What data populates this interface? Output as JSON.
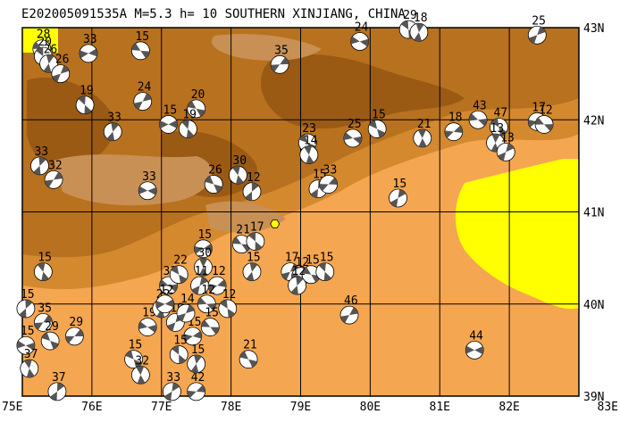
{
  "title": "E202005091535A M=5.3 h= 10 SOUTHERN XINJIANG, CHINA",
  "map": {
    "lon_range": [
      75,
      83
    ],
    "lat_range": [
      39,
      43
    ],
    "lon_ticks": [
      "75E",
      "76E",
      "77E",
      "78E",
      "79E",
      "80E",
      "81E",
      "82E",
      "83E"
    ],
    "lat_ticks": [
      "43N",
      "42N",
      "41N",
      "40N",
      "39N"
    ],
    "colors": {
      "plain": "#F5A650",
      "foothill": "#D4892F",
      "mountain": "#B8711E",
      "high_mountain": "#9A5A14",
      "mountain_light": "#C99055",
      "ridge_light": "#E0B080",
      "highlight": "#FFFF00",
      "grid": "#000000"
    },
    "epicenter": {
      "lon": 78.63,
      "lat": 40.87,
      "color": "#FFFF00"
    },
    "mechanisms": [
      {
        "lon": 75.28,
        "lat": 42.77,
        "label": "28"
      },
      {
        "lon": 75.3,
        "lat": 42.69,
        "label": "20"
      },
      {
        "lon": 75.38,
        "lat": 42.61,
        "label": "26"
      },
      {
        "lon": 75.55,
        "lat": 42.5,
        "label": "26"
      },
      {
        "lon": 75.95,
        "lat": 42.72,
        "label": "33"
      },
      {
        "lon": 76.7,
        "lat": 42.75,
        "label": "15"
      },
      {
        "lon": 75.9,
        "lat": 42.16,
        "label": "19"
      },
      {
        "lon": 76.3,
        "lat": 41.87,
        "label": "33"
      },
      {
        "lon": 76.73,
        "lat": 42.2,
        "label": "24"
      },
      {
        "lon": 77.1,
        "lat": 41.95,
        "label": "15"
      },
      {
        "lon": 77.5,
        "lat": 42.12,
        "label": "20"
      },
      {
        "lon": 77.38,
        "lat": 41.9,
        "label": "19"
      },
      {
        "lon": 75.25,
        "lat": 41.5,
        "label": "33"
      },
      {
        "lon": 75.45,
        "lat": 41.35,
        "label": "32"
      },
      {
        "lon": 76.8,
        "lat": 41.23,
        "label": "33"
      },
      {
        "lon": 77.75,
        "lat": 41.3,
        "label": "26"
      },
      {
        "lon": 78.1,
        "lat": 41.4,
        "label": "30"
      },
      {
        "lon": 78.3,
        "lat": 41.22,
        "label": "12"
      },
      {
        "lon": 78.7,
        "lat": 42.6,
        "label": "35"
      },
      {
        "lon": 79.85,
        "lat": 42.85,
        "label": "24"
      },
      {
        "lon": 79.1,
        "lat": 41.75,
        "label": "23"
      },
      {
        "lon": 79.12,
        "lat": 41.62,
        "label": "14"
      },
      {
        "lon": 79.25,
        "lat": 41.25,
        "label": "15"
      },
      {
        "lon": 79.4,
        "lat": 41.3,
        "label": "33"
      },
      {
        "lon": 79.75,
        "lat": 41.8,
        "label": "25"
      },
      {
        "lon": 80.1,
        "lat": 41.9,
        "label": "15"
      },
      {
        "lon": 80.75,
        "lat": 41.8,
        "label": "21"
      },
      {
        "lon": 80.4,
        "lat": 41.15,
        "label": "15"
      },
      {
        "lon": 81.2,
        "lat": 41.87,
        "label": "18"
      },
      {
        "lon": 81.55,
        "lat": 42.0,
        "label": "43"
      },
      {
        "lon": 81.85,
        "lat": 41.92,
        "label": "47"
      },
      {
        "lon": 81.8,
        "lat": 41.75,
        "label": "13"
      },
      {
        "lon": 81.95,
        "lat": 41.65,
        "label": "13"
      },
      {
        "lon": 82.4,
        "lat": 41.98,
        "label": "17"
      },
      {
        "lon": 82.5,
        "lat": 41.95,
        "label": "12"
      },
      {
        "lon": 80.55,
        "lat": 42.98,
        "label": "29"
      },
      {
        "lon": 80.7,
        "lat": 42.95,
        "label": "18"
      },
      {
        "lon": 82.4,
        "lat": 42.92,
        "label": "25"
      },
      {
        "lon": 77.6,
        "lat": 40.6,
        "label": "15"
      },
      {
        "lon": 78.15,
        "lat": 40.65,
        "label": "21"
      },
      {
        "lon": 78.35,
        "lat": 40.68,
        "label": "17"
      },
      {
        "lon": 78.3,
        "lat": 40.35,
        "label": "15"
      },
      {
        "lon": 78.85,
        "lat": 40.35,
        "label": "17"
      },
      {
        "lon": 79.0,
        "lat": 40.3,
        "label": "12"
      },
      {
        "lon": 79.15,
        "lat": 40.32,
        "label": "15"
      },
      {
        "lon": 79.35,
        "lat": 40.35,
        "label": "15"
      },
      {
        "lon": 78.95,
        "lat": 40.2,
        "label": "12"
      },
      {
        "lon": 79.7,
        "lat": 39.88,
        "label": "46"
      },
      {
        "lon": 81.5,
        "lat": 39.5,
        "label": "44"
      },
      {
        "lon": 78.25,
        "lat": 39.4,
        "label": "21"
      },
      {
        "lon": 75.3,
        "lat": 40.35,
        "label": "15"
      },
      {
        "lon": 75.05,
        "lat": 39.95,
        "label": "15"
      },
      {
        "lon": 75.3,
        "lat": 39.8,
        "label": "35"
      },
      {
        "lon": 75.05,
        "lat": 39.55,
        "label": "15"
      },
      {
        "lon": 75.4,
        "lat": 39.6,
        "label": "29"
      },
      {
        "lon": 75.1,
        "lat": 39.3,
        "label": "37"
      },
      {
        "lon": 75.5,
        "lat": 39.05,
        "label": "37"
      },
      {
        "lon": 75.75,
        "lat": 39.65,
        "label": "29"
      },
      {
        "lon": 76.8,
        "lat": 39.75,
        "label": "19"
      },
      {
        "lon": 76.6,
        "lat": 39.4,
        "label": "15"
      },
      {
        "lon": 76.7,
        "lat": 39.23,
        "label": "32"
      },
      {
        "lon": 77.15,
        "lat": 39.05,
        "label": "33"
      },
      {
        "lon": 77.5,
        "lat": 39.05,
        "label": "42"
      },
      {
        "lon": 77.1,
        "lat": 40.2,
        "label": "32"
      },
      {
        "lon": 77.25,
        "lat": 40.32,
        "label": "22"
      },
      {
        "lon": 77.6,
        "lat": 40.4,
        "label": "30"
      },
      {
        "lon": 77.55,
        "lat": 40.2,
        "label": "11"
      },
      {
        "lon": 77.8,
        "lat": 40.2,
        "label": "12"
      },
      {
        "lon": 77.65,
        "lat": 40.0,
        "label": "12"
      },
      {
        "lon": 77.95,
        "lat": 39.95,
        "label": "12"
      },
      {
        "lon": 77.0,
        "lat": 39.95,
        "label": "22"
      },
      {
        "lon": 77.2,
        "lat": 39.8,
        "label": "19"
      },
      {
        "lon": 77.45,
        "lat": 39.65,
        "label": "15"
      },
      {
        "lon": 77.7,
        "lat": 39.75,
        "label": "15"
      },
      {
        "lon": 77.25,
        "lat": 39.45,
        "label": "15"
      },
      {
        "lon": 77.5,
        "lat": 39.35,
        "label": "15"
      },
      {
        "lon": 77.35,
        "lat": 39.9,
        "label": "14"
      },
      {
        "lon": 77.05,
        "lat": 40.0,
        "label": "12"
      }
    ]
  }
}
